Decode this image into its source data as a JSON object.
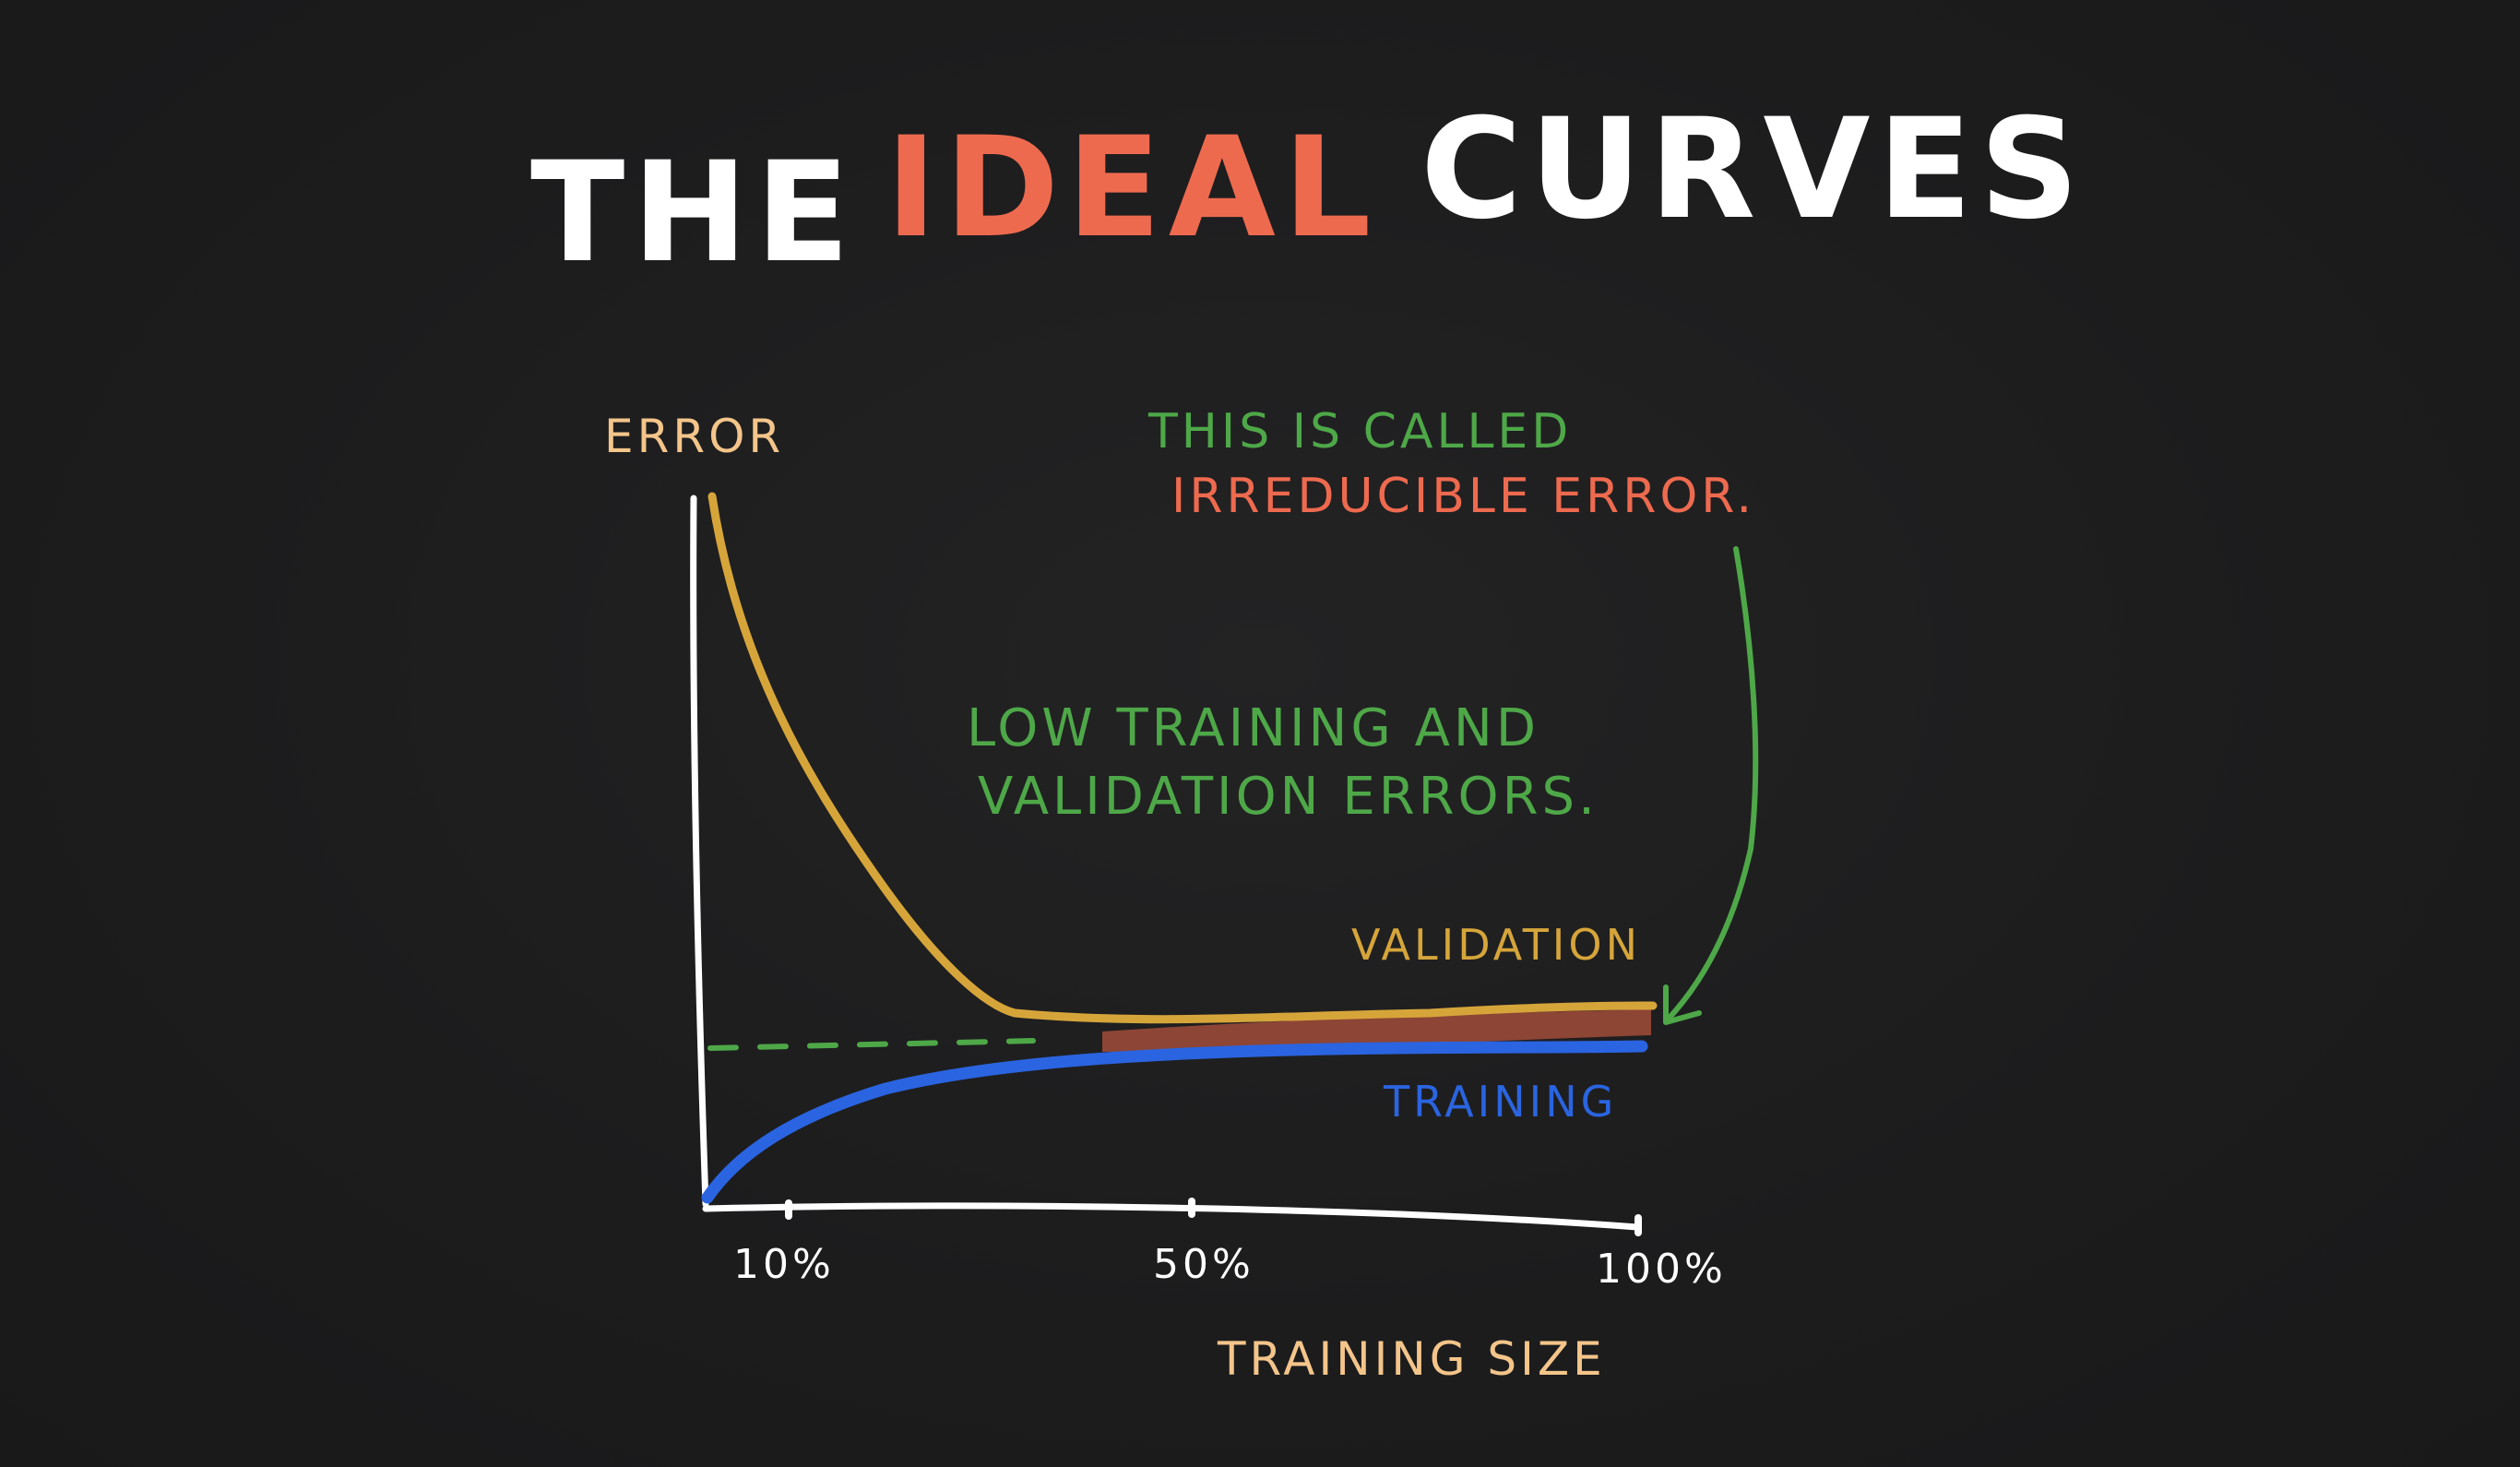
{
  "title": {
    "word1": "THE",
    "word2": "IDEAL",
    "word3": "CURVES"
  },
  "axes": {
    "ylabel": "ERROR",
    "xlabel": "TRAINING SIZE",
    "xticks": [
      "10%",
      "50%",
      "100%"
    ]
  },
  "series": {
    "validation_label": "VALIDATION",
    "training_label": "TRAINING"
  },
  "annotations": {
    "low_errors_line1": "LOW TRAINING AND",
    "low_errors_line2": "VALIDATION ERRORS.",
    "called_line1": "THIS IS CALLED",
    "called_line2": "IRREDUCIBLE ERROR."
  },
  "colors": {
    "background": "#1c1c1d",
    "title_main": "#ffffff",
    "title_accent": "#ee6a4f",
    "axis": "#ffffff",
    "axis_label": "#f4c58a",
    "validation": "#d6a53a",
    "training": "#2a64e0",
    "annotation_green": "#4ea848",
    "irreducible_red": "#ee6a4f"
  }
}
